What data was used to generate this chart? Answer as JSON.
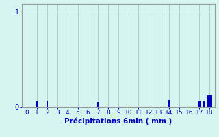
{
  "title": "",
  "xlabel": "Précipitations 6min ( mm )",
  "ylabel": "",
  "background_color": "#d6f5f0",
  "bar_color": "#0000bb",
  "grid_color": "#aacccc",
  "axis_color": "#999999",
  "text_color": "#0000bb",
  "xlim": [
    -0.5,
    18.5
  ],
  "ylim": [
    0,
    1.08
  ],
  "yticks": [
    0,
    1
  ],
  "xticks": [
    0,
    1,
    2,
    3,
    4,
    5,
    6,
    7,
    8,
    9,
    10,
    11,
    12,
    13,
    14,
    15,
    16,
    17,
    18
  ],
  "bar_positions": [
    1,
    2,
    7,
    14,
    17,
    17.5,
    18
  ],
  "bar_heights": [
    0.06,
    0.06,
    0.05,
    0.07,
    0.06,
    0.06,
    0.12
  ],
  "bar_widths": [
    0.18,
    0.18,
    0.18,
    0.18,
    0.18,
    0.18,
    0.45
  ]
}
